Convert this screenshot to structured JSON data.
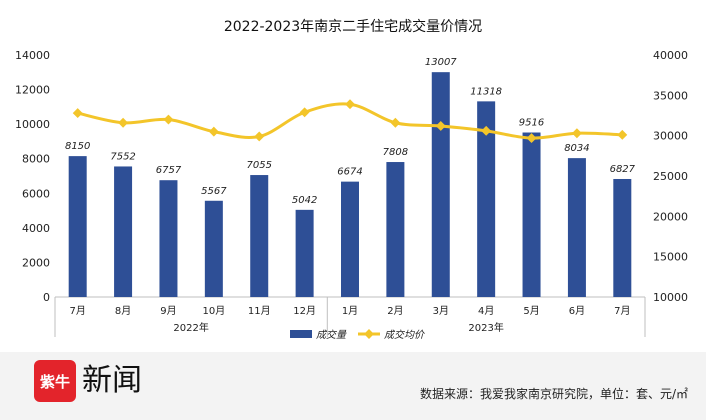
{
  "chart_data": {
    "type": "bar",
    "title": "2022-2023年南京二手住宅成交量价情况",
    "categories": [
      "7月",
      "8月",
      "9月",
      "10月",
      "11月",
      "12月",
      "1月",
      "2月",
      "3月",
      "4月",
      "5月",
      "6月",
      "7月"
    ],
    "year_groups": [
      {
        "label": "2022年",
        "from": 0,
        "to": 5
      },
      {
        "label": "2023年",
        "from": 6,
        "to": 12
      }
    ],
    "series": [
      {
        "name": "成交量",
        "type": "bar",
        "axis": "left",
        "color": "#2e4f96",
        "values": [
          8150,
          7552,
          6757,
          5567,
          7055,
          5042,
          6674,
          7808,
          13007,
          11318,
          9516,
          8034,
          6827
        ]
      },
      {
        "name": "成交均价",
        "type": "line",
        "axis": "right",
        "color": "#f3c52a",
        "values": [
          32800,
          31600,
          32000,
          30500,
          29900,
          32900,
          33900,
          31600,
          31200,
          30600,
          29700,
          30300,
          30100
        ]
      }
    ],
    "ylim_left": [
      0,
      14000
    ],
    "yticks_left": [
      0,
      2000,
      4000,
      6000,
      8000,
      10000,
      12000,
      14000
    ],
    "ylim_right": [
      10000,
      40000
    ],
    "yticks_right": [
      10000,
      15000,
      20000,
      25000,
      30000,
      35000,
      40000
    ],
    "grid": false,
    "legend_position": "bottom"
  },
  "logo": {
    "badge_text": "紫牛",
    "name": "新闻"
  },
  "source_text": "数据来源：我爱我家南京研究院，单位：套、元/㎡"
}
